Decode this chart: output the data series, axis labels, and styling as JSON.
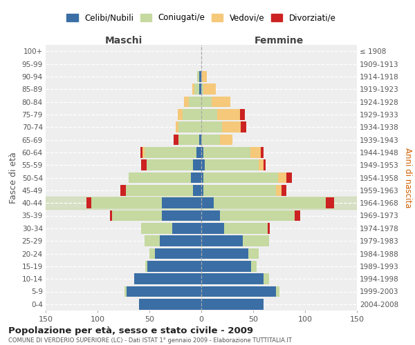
{
  "age_groups": [
    "0-4",
    "5-9",
    "10-14",
    "15-19",
    "20-24",
    "25-29",
    "30-34",
    "35-39",
    "40-44",
    "45-49",
    "50-54",
    "55-59",
    "60-64",
    "65-69",
    "70-74",
    "75-79",
    "80-84",
    "85-89",
    "90-94",
    "95-99",
    "100+"
  ],
  "birth_years": [
    "2004-2008",
    "1999-2003",
    "1994-1998",
    "1989-1993",
    "1984-1988",
    "1979-1983",
    "1974-1978",
    "1969-1973",
    "1964-1968",
    "1959-1963",
    "1954-1958",
    "1949-1953",
    "1944-1948",
    "1939-1943",
    "1934-1938",
    "1929-1933",
    "1924-1928",
    "1919-1923",
    "1914-1918",
    "1909-1913",
    "≤ 1908"
  ],
  "males": {
    "celibi": [
      60,
      72,
      65,
      52,
      45,
      40,
      28,
      38,
      38,
      8,
      10,
      8,
      5,
      2,
      0,
      0,
      0,
      2,
      2,
      0,
      0
    ],
    "coniugati": [
      0,
      2,
      0,
      2,
      5,
      15,
      30,
      48,
      68,
      65,
      60,
      45,
      50,
      20,
      22,
      18,
      12,
      5,
      2,
      0,
      0
    ],
    "vedovi": [
      0,
      0,
      0,
      0,
      0,
      0,
      0,
      0,
      0,
      0,
      0,
      0,
      2,
      0,
      3,
      5,
      5,
      2,
      0,
      0,
      0
    ],
    "divorziati": [
      0,
      0,
      0,
      0,
      0,
      0,
      0,
      2,
      5,
      5,
      0,
      5,
      2,
      5,
      0,
      0,
      0,
      0,
      0,
      0,
      0
    ]
  },
  "females": {
    "nubili": [
      60,
      72,
      60,
      48,
      45,
      40,
      22,
      18,
      12,
      2,
      2,
      3,
      2,
      0,
      0,
      0,
      0,
      0,
      0,
      0,
      0
    ],
    "coniugate": [
      0,
      3,
      5,
      5,
      10,
      25,
      42,
      72,
      108,
      70,
      72,
      52,
      45,
      18,
      20,
      15,
      10,
      2,
      0,
      0,
      0
    ],
    "vedove": [
      0,
      0,
      0,
      0,
      0,
      0,
      0,
      0,
      0,
      5,
      8,
      5,
      10,
      12,
      18,
      22,
      18,
      12,
      5,
      0,
      0
    ],
    "divorziate": [
      0,
      0,
      0,
      0,
      0,
      0,
      2,
      5,
      8,
      5,
      5,
      2,
      3,
      0,
      5,
      5,
      0,
      0,
      0,
      0,
      0
    ]
  },
  "colors": {
    "celibi": "#3a6ea5",
    "coniugati": "#c5d9a0",
    "vedovi": "#f5c87a",
    "divorziati": "#cc2222"
  },
  "highlight_row": "40-44",
  "xlim": 150,
  "title": "Popolazione per età, sesso e stato civile - 2009",
  "subtitle": "COMUNE DI VERDERIO SUPERIORE (LC) - Dati ISTAT 1° gennaio 2009 - Elaborazione TUTTITALIA.IT",
  "ylabel": "Fasce di età",
  "ylabel_right": "Anni di nascita",
  "legend_labels": [
    "Celibi/Nubili",
    "Coniugati/e",
    "Vedovi/e",
    "Divorziati/e"
  ],
  "xtick_labels": [
    "150",
    "100",
    "50",
    "0",
    "50",
    "100",
    "150"
  ],
  "xtick_vals": [
    -150,
    -100,
    -50,
    0,
    50,
    100,
    150
  ],
  "bg_color": "#ffffff",
  "plot_bg_color": "#eeeeee"
}
